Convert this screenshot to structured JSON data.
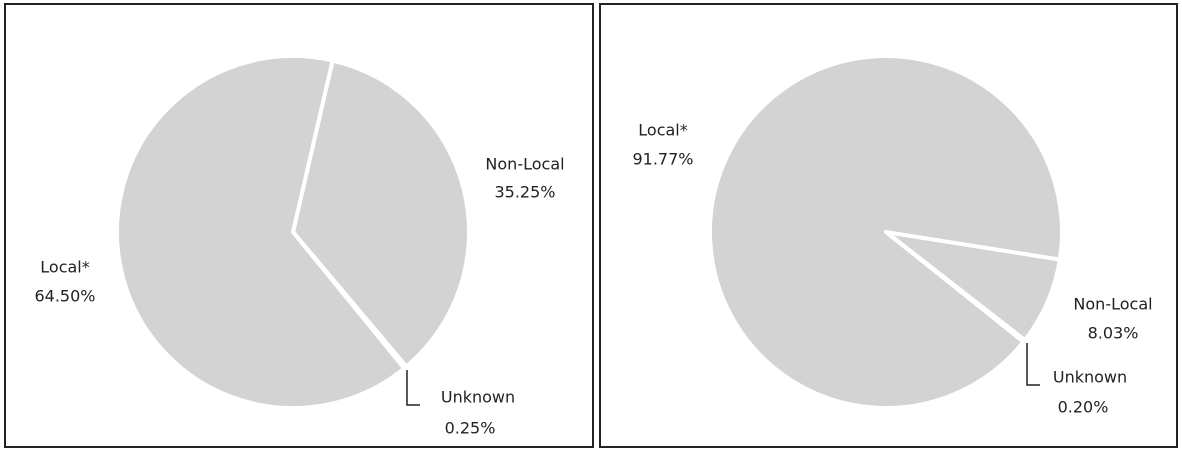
{
  "chart_data": [
    {
      "type": "pie",
      "categories": [
        "Non-Local",
        "Unknown",
        "Local*"
      ],
      "values": [
        35.25,
        0.25,
        64.5
      ],
      "value_labels": [
        "35.25%",
        "0.25%",
        "64.50%"
      ],
      "color": "#d3d3d3"
    },
    {
      "type": "pie",
      "categories": [
        "Non-Local",
        "Unknown",
        "Local*"
      ],
      "values": [
        8.03,
        0.2,
        91.77
      ],
      "value_labels": [
        "8.03%",
        "0.20%",
        "91.77%"
      ],
      "color": "#d3d3d3"
    }
  ]
}
